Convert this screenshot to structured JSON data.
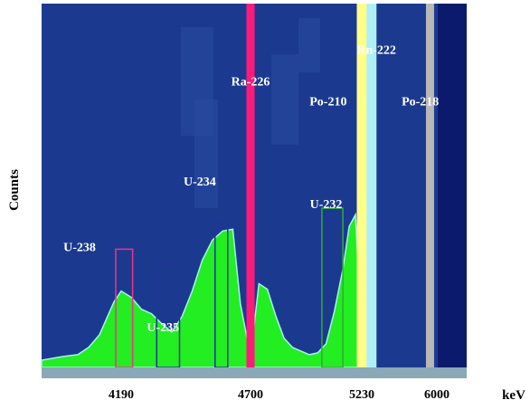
{
  "chart_data": {
    "type": "area",
    "title": "",
    "xlabel": "keV",
    "ylabel": "Counts",
    "x_ticks": [
      "4190",
      "4700",
      "5230",
      "6000"
    ],
    "grid": false,
    "legend": "none",
    "colors": {
      "background": "#1b3a8f",
      "dark_background": "#0c1a6e",
      "spectrum": "#22ee22",
      "spectrum_outline": "#aaf0f0",
      "label": "#ffffff",
      "ra226_line": "#ff1a7a",
      "rn222_line": "#ffff88",
      "rn222_side": "#aef0f8",
      "po218_line": "#b8b8b8",
      "axis_bar": "#8aa8b8"
    },
    "series": [
      {
        "x": [
          3750,
          3870,
          3950,
          4010,
          4070,
          4110,
          4150,
          4190,
          4230,
          4270,
          4310,
          4350,
          4390,
          4430,
          4470,
          4510,
          4550,
          4590,
          4630,
          4660,
          4700,
          4740,
          4780,
          4820,
          4860,
          4900,
          4940,
          4980,
          5020,
          5060,
          5100,
          5140,
          5170,
          5200,
          5230
        ],
        "y": [
          8,
          12,
          14,
          22,
          36,
          54,
          72,
          84,
          77,
          64,
          59,
          48,
          39,
          56,
          84,
          118,
          140,
          150,
          152,
          70,
          12,
          92,
          86,
          57,
          32,
          22,
          18,
          14,
          16,
          26,
          62,
          108,
          155,
          168,
          30
        ]
      }
    ],
    "peaks": [
      {
        "name": "U-238",
        "x": 4190,
        "label_x": 3960,
        "label_y": 128
      },
      {
        "name": "U-235",
        "x": 4400,
        "label_x": 4355,
        "label_y": 40
      },
      {
        "name": "U-234",
        "x": 4500,
        "label_x": 4500,
        "label_y": 200
      },
      {
        "name": "Ra-226",
        "x": 4700,
        "label_x": 4700,
        "label_y": 310
      },
      {
        "name": "U-232",
        "x": 5050,
        "label_x": 5060,
        "label_y": 175
      },
      {
        "name": "Po-210",
        "x": 5000,
        "label_x": 5070,
        "label_y": 288
      },
      {
        "name": "Rn-222",
        "x": 5380,
        "label_x": 5380,
        "label_y": 345
      },
      {
        "name": "Po-218",
        "x": 5810,
        "label_x": 5830,
        "label_y": 288
      }
    ]
  }
}
